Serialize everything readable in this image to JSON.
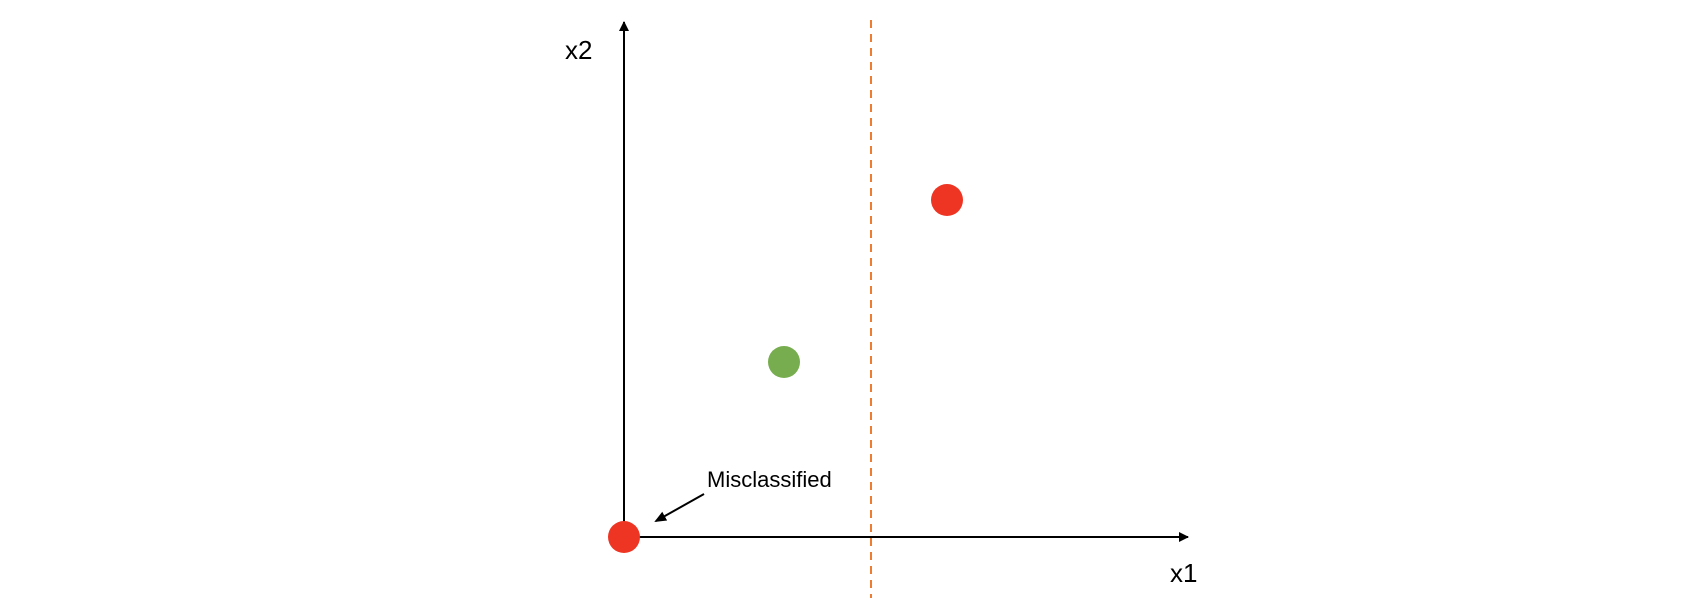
{
  "axes": {
    "x_label": "x1",
    "y_label": "x2"
  },
  "annotation": {
    "text": "Misclassified"
  },
  "points": [
    {
      "name": "red-point-origin",
      "color": "#EE3524"
    },
    {
      "name": "green-point",
      "color": "#77AD4F"
    },
    {
      "name": "red-point-upper-right",
      "color": "#EE3524"
    }
  ],
  "decision_boundary": {
    "color": "#ED7D31",
    "style": "dashed"
  }
}
